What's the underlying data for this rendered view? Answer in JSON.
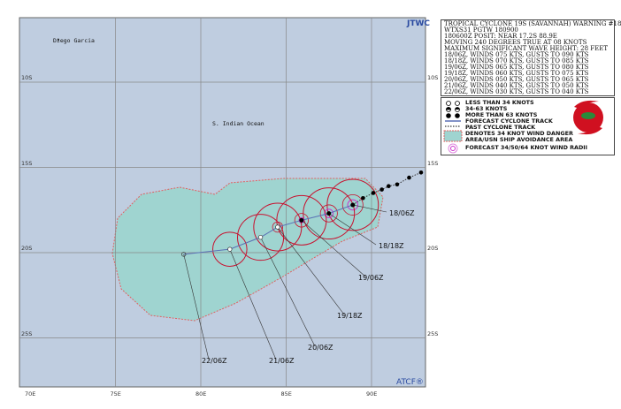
{
  "header": {
    "agency": "JTWC",
    "footer": "ATCF®"
  },
  "info_box": {
    "lines": [
      "TROPICAL CYCLONE 19S (SAVANNAH) WARNING #18",
      "WTXS31 PGTW 180900",
      "180600Z POSIT: NEAR 17.2S 88.9E",
      "MOVING 240 DEGREES TRUE AT 08 KNOTS",
      "MAXIMUM SIGNIFICANT WAVE HEIGHT: 28 FEET",
      "18/06Z, WINDS 075 KTS, GUSTS TO 090 KTS",
      "18/18Z, WINDS 070 KTS, GUSTS TO 085 KTS",
      "19/06Z, WINDS 065 KTS, GUSTS TO 080 KTS",
      "19/18Z, WINDS 060 KTS, GUSTS TO 075 KTS",
      "20/06Z, WINDS 050 KTS, GUSTS TO 065 KTS",
      "21/06Z, WINDS 040 KTS, GUSTS TO 050 KTS",
      "22/06Z, WINDS 030 KTS, GUSTS TO 040 KTS"
    ]
  },
  "legend": {
    "items": [
      "LESS THAN 34 KNOTS",
      "34-63 KNOTS",
      "MORE THAN 63 KNOTS",
      "FORECAST CYCLONE TRACK",
      "PAST CYCLONE TRACK",
      "DENOTES 34 KNOT WIND DANGER",
      "AREA/USN SHIP AVOIDANCE AREA",
      "FORECAST 34/50/64 KNOT WIND RADII"
    ]
  },
  "map": {
    "place_labels": [
      "Diego Garcia",
      "S. Indian Ocean"
    ],
    "lon_ticks": [
      "70E",
      "75E",
      "80E",
      "85E",
      "90E"
    ],
    "lat_ticks": [
      "10S",
      "15S",
      "20S",
      "25S"
    ],
    "colors": {
      "ocean": "#bfcde0",
      "danger": "#9fd4d0",
      "radii": "#c8102e",
      "track": "#5a6fb5",
      "radii64": "#cc33cc"
    },
    "forecast": [
      {
        "time": "18/06Z",
        "lat": 17.2,
        "lon": 88.9,
        "winds": 75
      },
      {
        "time": "18/18Z",
        "lat": 17.7,
        "lon": 87.5,
        "winds": 70
      },
      {
        "time": "19/06Z",
        "lat": 18.1,
        "lon": 85.9,
        "winds": 65
      },
      {
        "time": "19/18Z",
        "lat": 18.5,
        "lon": 84.5,
        "winds": 60
      },
      {
        "time": "20/06Z",
        "lat": 19.1,
        "lon": 83.5,
        "winds": 50
      },
      {
        "time": "21/06Z",
        "lat": 19.8,
        "lon": 81.7,
        "winds": 40
      },
      {
        "time": "22/06Z",
        "lat": 20.1,
        "lon": 79.0,
        "winds": 30
      }
    ],
    "past_track": [
      [
        16.8,
        89.5
      ],
      [
        16.5,
        90.1
      ],
      [
        16.3,
        90.6
      ],
      [
        16.1,
        91.0
      ],
      [
        16.0,
        91.5
      ],
      [
        15.6,
        92.2
      ],
      [
        15.3,
        92.9
      ]
    ]
  }
}
